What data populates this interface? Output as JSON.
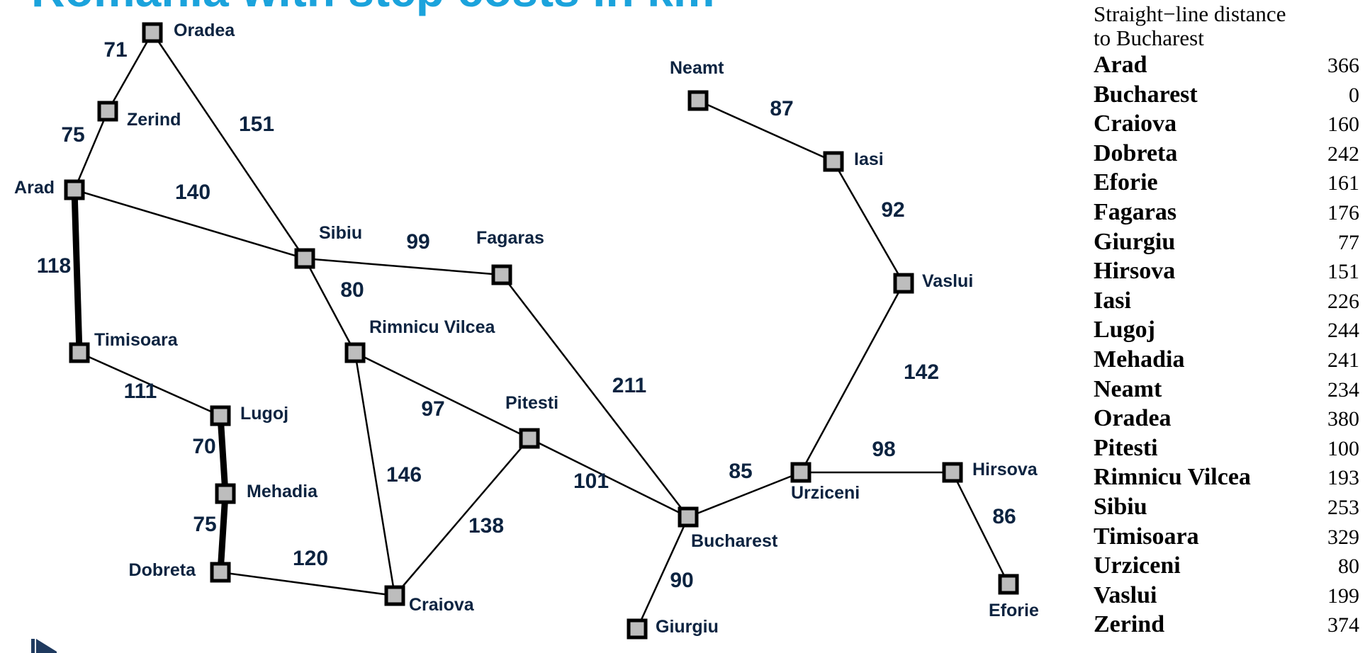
{
  "title": {
    "text": "Romania with step costs in km",
    "color": "#1ba3dc"
  },
  "node_style": {
    "fill": "#bdbdbd",
    "stroke": "#000000"
  },
  "cities": [
    {
      "id": "oradea",
      "name": "Oradea"
    },
    {
      "id": "zerind",
      "name": "Zerind"
    },
    {
      "id": "arad",
      "name": "Arad"
    },
    {
      "id": "timisoara",
      "name": "Timisoara"
    },
    {
      "id": "lugoj",
      "name": "Lugoj"
    },
    {
      "id": "mehadia",
      "name": "Mehadia"
    },
    {
      "id": "dobreta",
      "name": "Dobreta"
    },
    {
      "id": "craiova",
      "name": "Craiova"
    },
    {
      "id": "sibiu",
      "name": "Sibiu"
    },
    {
      "id": "rimnicu",
      "name": "Rimnicu Vilcea"
    },
    {
      "id": "fagaras",
      "name": "Fagaras"
    },
    {
      "id": "pitesti",
      "name": "Pitesti"
    },
    {
      "id": "bucharest",
      "name": "Bucharest"
    },
    {
      "id": "giurgiu",
      "name": "Giurgiu"
    },
    {
      "id": "urziceni",
      "name": "Urziceni"
    },
    {
      "id": "hirsova",
      "name": "Hirsova"
    },
    {
      "id": "eforie",
      "name": "Eforie"
    },
    {
      "id": "vaslui",
      "name": "Vaslui"
    },
    {
      "id": "iasi",
      "name": "Iasi"
    },
    {
      "id": "neamt",
      "name": "Neamt"
    }
  ],
  "roads": [
    {
      "from": "oradea",
      "to": "zerind",
      "cost": "71"
    },
    {
      "from": "zerind",
      "to": "arad",
      "cost": "75"
    },
    {
      "from": "oradea",
      "to": "sibiu",
      "cost": "151"
    },
    {
      "from": "arad",
      "to": "sibiu",
      "cost": "140"
    },
    {
      "from": "arad",
      "to": "timisoara",
      "cost": "118",
      "highlighted": true
    },
    {
      "from": "timisoara",
      "to": "lugoj",
      "cost": "111"
    },
    {
      "from": "lugoj",
      "to": "mehadia",
      "cost": "70",
      "highlighted": true
    },
    {
      "from": "mehadia",
      "to": "dobreta",
      "cost": "75",
      "highlighted": true
    },
    {
      "from": "dobreta",
      "to": "craiova",
      "cost": "120"
    },
    {
      "from": "sibiu",
      "to": "fagaras",
      "cost": "99"
    },
    {
      "from": "sibiu",
      "to": "rimnicu",
      "cost": "80"
    },
    {
      "from": "rimnicu",
      "to": "pitesti",
      "cost": "97"
    },
    {
      "from": "rimnicu",
      "to": "craiova",
      "cost": "146"
    },
    {
      "from": "craiova",
      "to": "pitesti",
      "cost": "138"
    },
    {
      "from": "fagaras",
      "to": "bucharest",
      "cost": "211"
    },
    {
      "from": "pitesti",
      "to": "bucharest",
      "cost": "101"
    },
    {
      "from": "bucharest",
      "to": "giurgiu",
      "cost": "90"
    },
    {
      "from": "bucharest",
      "to": "urziceni",
      "cost": "85"
    },
    {
      "from": "urziceni",
      "to": "hirsova",
      "cost": "98"
    },
    {
      "from": "hirsova",
      "to": "eforie",
      "cost": "86"
    },
    {
      "from": "urziceni",
      "to": "vaslui",
      "cost": "142"
    },
    {
      "from": "vaslui",
      "to": "iasi",
      "cost": "92"
    },
    {
      "from": "iasi",
      "to": "neamt",
      "cost": "87"
    }
  ],
  "heuristic": {
    "caption_line1": "Straight−line distance",
    "caption_line2": "to Bucharest",
    "rows": [
      {
        "city": "Arad",
        "value": "366"
      },
      {
        "city": "Bucharest",
        "value": "0"
      },
      {
        "city": "Craiova",
        "value": "160"
      },
      {
        "city": "Dobreta",
        "value": "242"
      },
      {
        "city": "Eforie",
        "value": "161"
      },
      {
        "city": "Fagaras",
        "value": "176"
      },
      {
        "city": "Giurgiu",
        "value": "77"
      },
      {
        "city": "Hirsova",
        "value": "151"
      },
      {
        "city": "Iasi",
        "value": "226"
      },
      {
        "city": "Lugoj",
        "value": "244"
      },
      {
        "city": "Mehadia",
        "value": "241"
      },
      {
        "city": "Neamt",
        "value": "234"
      },
      {
        "city": "Oradea",
        "value": "380"
      },
      {
        "city": "Pitesti",
        "value": "100"
      },
      {
        "city": "Rimnicu Vilcea",
        "value": "193"
      },
      {
        "city": "Sibiu",
        "value": "253"
      },
      {
        "city": "Timisoara",
        "value": "329"
      },
      {
        "city": "Urziceni",
        "value": "80"
      },
      {
        "city": "Vaslui",
        "value": "199"
      },
      {
        "city": "Zerind",
        "value": "374"
      }
    ]
  }
}
